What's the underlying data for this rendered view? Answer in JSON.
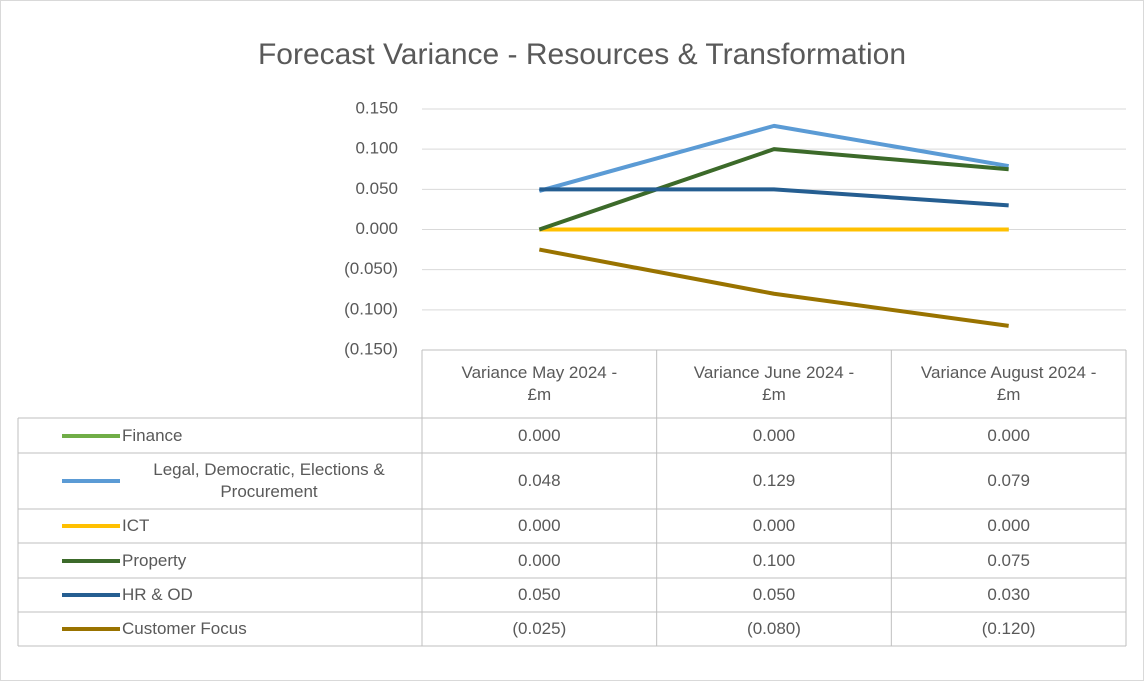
{
  "chart_data": {
    "type": "line",
    "title": "Forecast Variance - Resources & Transformation",
    "categories": [
      "Variance May 2024 - £m",
      "Variance June 2024 - £m",
      "Variance August 2024 - £m"
    ],
    "series": [
      {
        "name": "Finance",
        "color": "#70ad47",
        "values": [
          0,
          0,
          0
        ],
        "value_labels": [
          "0.000",
          "0.000",
          "0.000"
        ]
      },
      {
        "name": "Legal, Democratic, Elections & Procurement",
        "color": "#5b9bd5",
        "values": [
          0.048,
          0.129,
          0.079
        ],
        "value_labels": [
          "0.048",
          "0.129",
          "0.079"
        ]
      },
      {
        "name": "ICT",
        "color": "#ffc000",
        "values": [
          0,
          0,
          0
        ],
        "value_labels": [
          "0.000",
          "0.000",
          "0.000"
        ]
      },
      {
        "name": "Property",
        "color": "#3c6a2a",
        "values": [
          0,
          0.1,
          0.075
        ],
        "value_labels": [
          "0.000",
          "0.100",
          "0.075"
        ]
      },
      {
        "name": "HR & OD",
        "color": "#255e91",
        "values": [
          0.05,
          0.05,
          0.03
        ],
        "value_labels": [
          "0.050",
          "0.050",
          "0.030"
        ]
      },
      {
        "name": "Customer Focus",
        "color": "#997300",
        "values": [
          -0.025,
          -0.08,
          -0.12
        ],
        "value_labels": [
          "(0.025)",
          "(0.080)",
          "(0.120)"
        ]
      }
    ],
    "ylim": [
      -0.15,
      0.15
    ],
    "yticks": [
      {
        "value": -0.15,
        "label": "(0.150)"
      },
      {
        "value": -0.1,
        "label": "(0.100)"
      },
      {
        "value": -0.05,
        "label": "(0.050)"
      },
      {
        "value": 0,
        "label": "0.000"
      },
      {
        "value": 0.05,
        "label": "0.050"
      },
      {
        "value": 0.1,
        "label": "0.100"
      },
      {
        "value": 0.15,
        "label": "0.150"
      }
    ],
    "grid": true
  }
}
